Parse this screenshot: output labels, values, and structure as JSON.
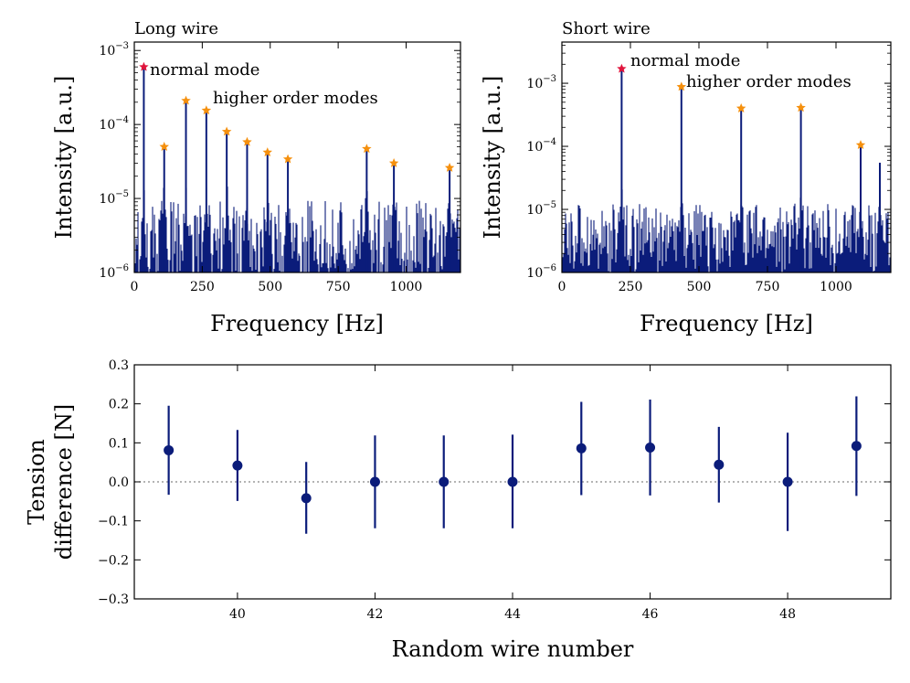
{
  "chart_data": [
    {
      "type": "line",
      "title": "Long wire",
      "xlabel": "Frequency [Hz]",
      "ylabel": "Intensity [a.u.]",
      "yscale": "log",
      "xlim": [
        0,
        1200
      ],
      "ylim": [
        1e-06,
        0.0013
      ],
      "xticks": [
        0,
        250,
        500,
        750,
        1000
      ],
      "xtick_labels": [
        "0",
        "250",
        "500",
        "750",
        "1000"
      ],
      "yticks": [
        1e-06,
        1e-05,
        0.0001,
        0.001
      ],
      "ytick_labels": [
        "10−6",
        "10−5",
        "10−4",
        "10−3"
      ],
      "line_color": "#0b1c7a",
      "noise_floor": 3e-06,
      "normal_mode": {
        "label": "normal mode",
        "frequency": 35,
        "intensity": 0.0006,
        "color": "#e0143c"
      },
      "higher_order_label": "higher order modes",
      "higher_order_color": "#f5900e",
      "higher_order_modes": [
        {
          "frequency": 110,
          "intensity": 5e-05
        },
        {
          "frequency": 190,
          "intensity": 0.00021
        },
        {
          "frequency": 265,
          "intensity": 0.000155
        },
        {
          "frequency": 340,
          "intensity": 8e-05
        },
        {
          "frequency": 415,
          "intensity": 5.8e-05
        },
        {
          "frequency": 490,
          "intensity": 4.2e-05
        },
        {
          "frequency": 565,
          "intensity": 3.4e-05
        },
        {
          "frequency": 855,
          "intensity": 4.7e-05
        },
        {
          "frequency": 955,
          "intensity": 3e-05
        },
        {
          "frequency": 1160,
          "intensity": 2.6e-05
        }
      ]
    },
    {
      "type": "line",
      "title": "Short wire",
      "xlabel": "Frequency [Hz]",
      "ylabel": "Intensity [a.u.]",
      "yscale": "log",
      "xlim": [
        0,
        1200
      ],
      "ylim": [
        1e-06,
        0.0045
      ],
      "xticks": [
        0,
        250,
        500,
        750,
        1000
      ],
      "xtick_labels": [
        "0",
        "250",
        "500",
        "750",
        "1000"
      ],
      "yticks": [
        1e-06,
        1e-05,
        0.0001,
        0.001
      ],
      "ytick_labels": [
        "10−6",
        "10−5",
        "10−4",
        "10−3"
      ],
      "line_color": "#0b1c7a",
      "noise_floor": 4e-06,
      "normal_mode": {
        "label": "normal mode",
        "frequency": 218,
        "intensity": 0.0017,
        "color": "#e0143c"
      },
      "higher_order_label": "higher order modes",
      "higher_order_color": "#f5900e",
      "higher_order_modes": [
        {
          "frequency": 436,
          "intensity": 0.00088
        },
        {
          "frequency": 654,
          "intensity": 0.0004
        },
        {
          "frequency": 872,
          "intensity": 0.00041
        },
        {
          "frequency": 1090,
          "intensity": 0.000105
        }
      ],
      "extra_peaks": [
        {
          "frequency": 1160,
          "intensity": 5.5e-05
        }
      ]
    },
    {
      "type": "scatter",
      "title": "",
      "xlabel": "Random wire number",
      "ylabel": "Tension difference [N]",
      "xlim": [
        38.5,
        49.5
      ],
      "ylim": [
        -0.3,
        0.3
      ],
      "xticks": [
        40,
        42,
        44,
        46,
        48
      ],
      "xtick_labels": [
        "40",
        "42",
        "44",
        "46",
        "48"
      ],
      "yticks": [
        -0.3,
        -0.2,
        -0.1,
        0.0,
        0.1,
        0.2,
        0.3
      ],
      "ytick_labels": [
        "−0.3",
        "−0.2",
        "−0.1",
        "0.0",
        "0.1",
        "0.2",
        "0.3"
      ],
      "reference_line": 0.0,
      "marker_color": "#0b1c7a",
      "points": [
        {
          "x": 39,
          "y": 0.081,
          "err_low": -0.033,
          "err_high": 0.195
        },
        {
          "x": 40,
          "y": 0.042,
          "err_low": -0.049,
          "err_high": 0.133
        },
        {
          "x": 41,
          "y": -0.042,
          "err_low": -0.133,
          "err_high": 0.051
        },
        {
          "x": 42,
          "y": 0.0,
          "err_low": -0.119,
          "err_high": 0.119
        },
        {
          "x": 43,
          "y": 0.0,
          "err_low": -0.119,
          "err_high": 0.119
        },
        {
          "x": 44,
          "y": 0.0,
          "err_low": -0.119,
          "err_high": 0.121
        },
        {
          "x": 45,
          "y": 0.086,
          "err_low": -0.034,
          "err_high": 0.205
        },
        {
          "x": 46,
          "y": 0.088,
          "err_low": -0.035,
          "err_high": 0.211
        },
        {
          "x": 47,
          "y": 0.044,
          "err_low": -0.053,
          "err_high": 0.141
        },
        {
          "x": 48,
          "y": 0.0,
          "err_low": -0.126,
          "err_high": 0.126
        },
        {
          "x": 49,
          "y": 0.092,
          "err_low": -0.036,
          "err_high": 0.219
        }
      ]
    }
  ]
}
